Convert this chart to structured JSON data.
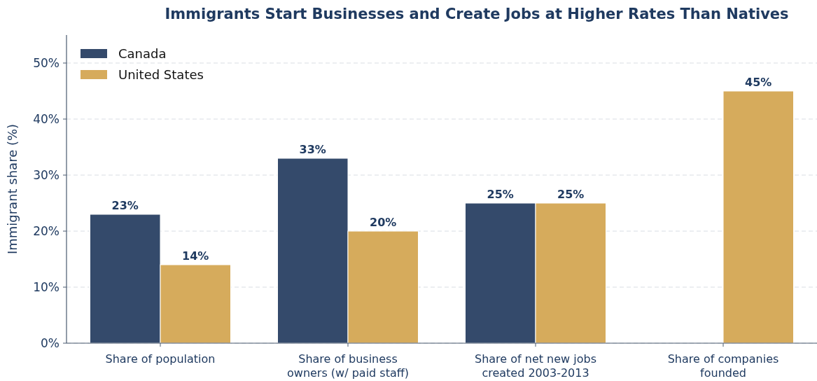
{
  "chart_data": {
    "type": "bar",
    "title": "Immigrants Start Businesses and Create Jobs at Higher Rates Than Natives",
    "ylabel": "Immigrant share (%)",
    "categories": [
      "Share of population",
      "Share of business owners (w/ paid staff)",
      "Share of net new jobs created 2003-2013",
      "Share of companies founded"
    ],
    "series": [
      {
        "name": "Canada",
        "color": "#344a6b",
        "values": [
          23,
          33,
          25,
          null
        ],
        "value_labels": [
          "23%",
          "33%",
          "25%",
          null
        ]
      },
      {
        "name": "United States",
        "color": "#d6ab5c",
        "values": [
          14,
          20,
          25,
          45
        ],
        "value_labels": [
          "14%",
          "20%",
          "25%",
          "45%"
        ]
      }
    ],
    "ylim": [
      0,
      55
    ],
    "yticks": [
      {
        "value": 0,
        "label": "0%"
      },
      {
        "value": 10,
        "label": "10%"
      },
      {
        "value": 20,
        "label": "20%"
      },
      {
        "value": 30,
        "label": "30%"
      },
      {
        "value": 40,
        "label": "40%"
      },
      {
        "value": 50,
        "label": "50%"
      }
    ],
    "grid": "y",
    "legend": "top left"
  }
}
